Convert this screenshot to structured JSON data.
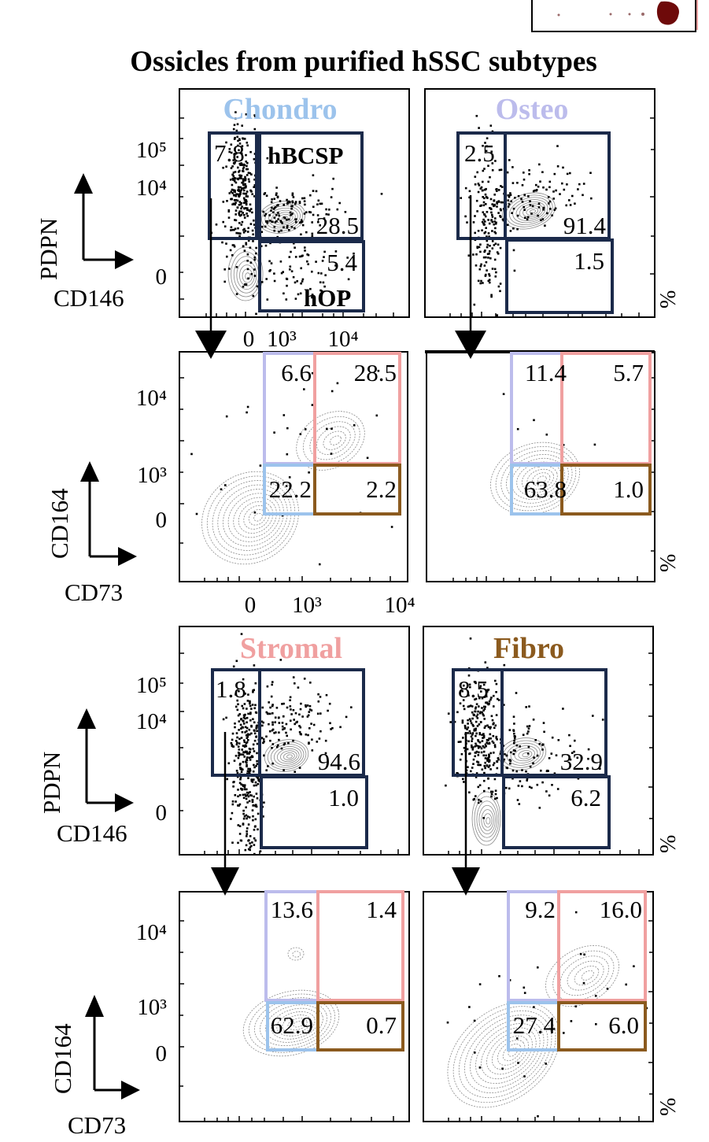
{
  "figure_title": "Ossicles from purified hSSC subtypes",
  "colors": {
    "frame": "#000000",
    "gate_navy": "#1b2a4a",
    "chondro": "#9cc3ec",
    "osteo": "#bcbcec",
    "stromal": "#f0a0a0",
    "fibro": "#8b5a1e",
    "contour": "#8a8a8a",
    "dots": "#000000"
  },
  "chart_data": [
    {
      "type": "scatter",
      "subtype": "flow-cytometry-contour",
      "title": "Chondro",
      "title_color": "#9cc3ec",
      "xlabel": "CD146",
      "ylabel": "PDPN",
      "x_ticks": [
        "0",
        "10³",
        "10⁴"
      ],
      "y_ticks": [
        "10⁵",
        "10⁴",
        "0"
      ],
      "gates": [
        {
          "value": "7.8",
          "color": "#1b2a4a"
        },
        {
          "value": "28.5",
          "name": "hBCSP",
          "color": "#1b2a4a"
        },
        {
          "value": "5.4",
          "name": "hOP",
          "color": "#1b2a4a"
        }
      ]
    },
    {
      "type": "scatter",
      "subtype": "flow-cytometry-contour",
      "title": "Osteo",
      "title_color": "#bcbcec",
      "xlabel": "CD146",
      "ylabel": "PDPN",
      "gates": [
        {
          "value": "2.5",
          "color": "#1b2a4a"
        },
        {
          "value": "91.4",
          "color": "#1b2a4a"
        },
        {
          "value": "1.5",
          "color": "#1b2a4a"
        }
      ],
      "unit": "%"
    },
    {
      "type": "scatter",
      "subtype": "flow-cytometry-contour",
      "xlabel": "CD73",
      "ylabel": "CD164",
      "x_ticks": [
        "0",
        "10³",
        "10⁴"
      ],
      "y_ticks": [
        "10⁴",
        "10³",
        "0"
      ],
      "gates": [
        {
          "value": "6.6",
          "color": "#bcbcec"
        },
        {
          "value": "28.5",
          "color": "#f0a0a0"
        },
        {
          "value": "22.2",
          "color": "#9cc3ec"
        },
        {
          "value": "2.2",
          "color": "#8b5a1e"
        }
      ]
    },
    {
      "type": "scatter",
      "subtype": "flow-cytometry-contour",
      "xlabel": "CD73",
      "ylabel": "CD164",
      "gates": [
        {
          "value": "11.4",
          "color": "#bcbcec"
        },
        {
          "value": "5.7",
          "color": "#f0a0a0"
        },
        {
          "value": "63.8",
          "color": "#9cc3ec"
        },
        {
          "value": "1.0",
          "color": "#8b5a1e"
        }
      ],
      "unit": "%"
    },
    {
      "type": "scatter",
      "subtype": "flow-cytometry-contour",
      "title": "Stromal",
      "title_color": "#f0a0a0",
      "xlabel": "CD146",
      "ylabel": "PDPN",
      "y_ticks": [
        "10⁵",
        "10⁴",
        "0"
      ],
      "gates": [
        {
          "value": "1.8",
          "color": "#1b2a4a"
        },
        {
          "value": "94.6",
          "color": "#1b2a4a"
        },
        {
          "value": "1.0",
          "color": "#1b2a4a"
        }
      ]
    },
    {
      "type": "scatter",
      "subtype": "flow-cytometry-contour",
      "title": "Fibro",
      "title_color": "#8b5a1e",
      "xlabel": "CD146",
      "ylabel": "PDPN",
      "gates": [
        {
          "value": "8.5",
          "color": "#1b2a4a"
        },
        {
          "value": "32.9",
          "color": "#1b2a4a"
        },
        {
          "value": "6.2",
          "color": "#1b2a4a"
        }
      ],
      "unit": "%"
    },
    {
      "type": "scatter",
      "subtype": "flow-cytometry-contour",
      "xlabel": "CD73",
      "ylabel": "CD164",
      "y_ticks": [
        "10⁴",
        "10³",
        "0"
      ],
      "gates": [
        {
          "value": "13.6",
          "color": "#bcbcec"
        },
        {
          "value": "1.4",
          "color": "#f0a0a0"
        },
        {
          "value": "62.9",
          "color": "#9cc3ec"
        },
        {
          "value": "0.7",
          "color": "#8b5a1e"
        }
      ]
    },
    {
      "type": "scatter",
      "subtype": "flow-cytometry-contour",
      "xlabel": "CD73",
      "ylabel": "CD164",
      "gates": [
        {
          "value": "9.2",
          "color": "#bcbcec"
        },
        {
          "value": "16.0",
          "color": "#f0a0a0"
        },
        {
          "value": "27.4",
          "color": "#9cc3ec"
        },
        {
          "value": "6.0",
          "color": "#8b5a1e"
        }
      ],
      "unit": "%"
    }
  ]
}
